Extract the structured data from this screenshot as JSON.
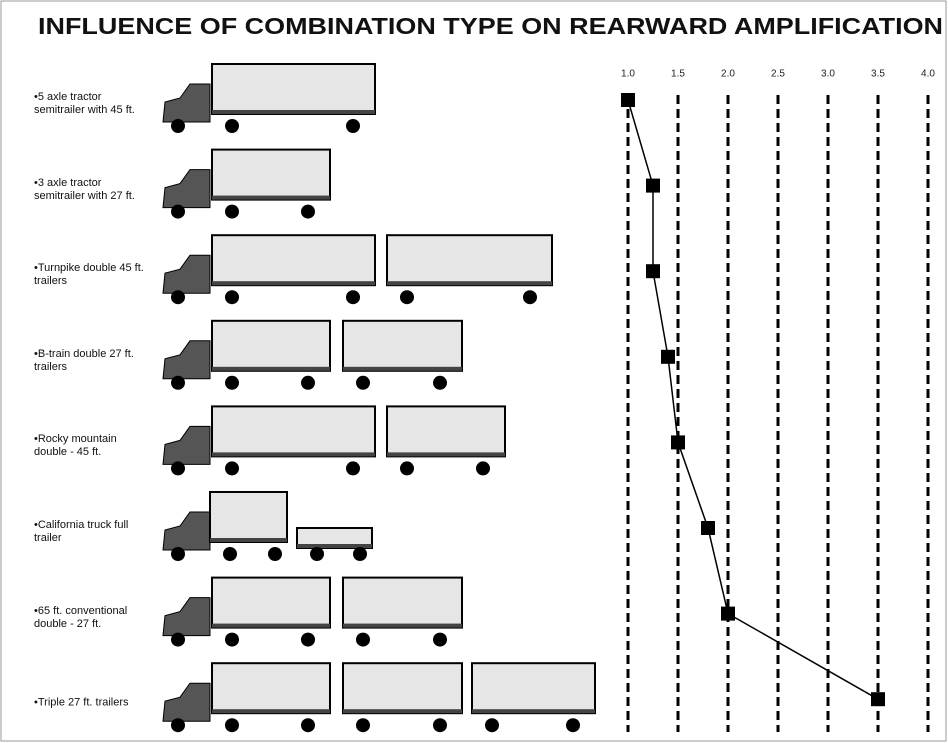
{
  "chart_data": {
    "type": "dot-line",
    "title": "INFLUENCE OF COMBINATION TYPE ON REARWARD AMPLIFICATION",
    "categories": [
      "•5 axle tractor semitrailer with 45 ft.",
      "•3 axle tractor semitrailer with 27 ft.",
      "•Turnpike double 45 ft. trailers",
      "•B-train double 27 ft. trailers",
      "•Rocky mountain double - 45 ft.",
      "•California truck full trailer",
      "•65 ft. conventional double - 27 ft.",
      "•Triple 27 ft. trailers"
    ],
    "values": [
      1.0,
      1.25,
      1.25,
      1.4,
      1.5,
      1.8,
      2.0,
      3.5
    ],
    "color": "#000000",
    "xlim": [
      1.0,
      4.0
    ],
    "xticks": [
      {
        "value": 1,
        "label": "1.0"
      },
      1.5,
      {
        "value": 2,
        "label": "2.0"
      },
      2.5,
      {
        "value": 3,
        "label": "3.0"
      },
      3.5,
      {
        "value": 4,
        "label": "4.0"
      }
    ],
    "grid": true
  }
}
